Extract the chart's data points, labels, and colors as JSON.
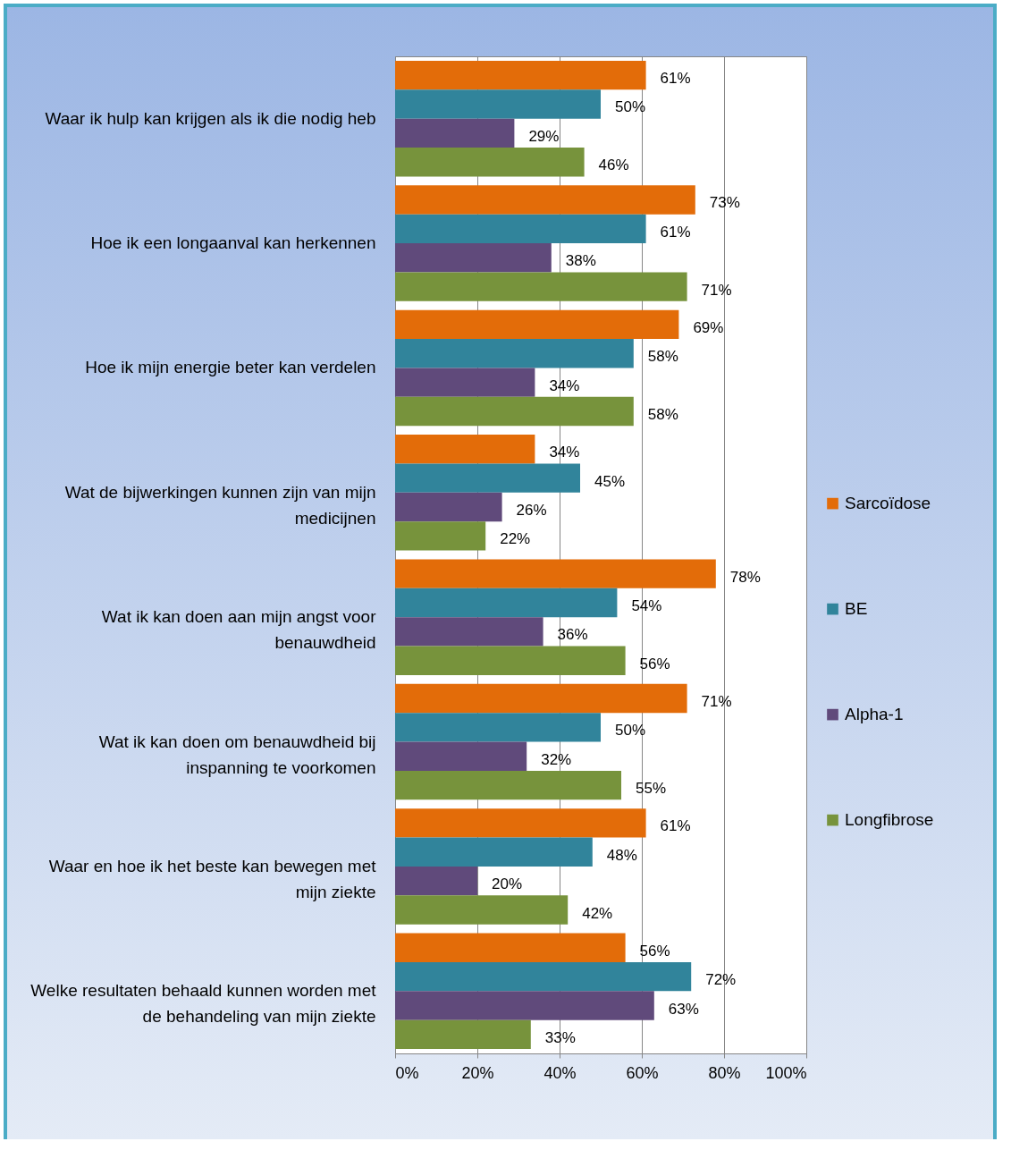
{
  "chart_data": {
    "type": "bar",
    "orientation": "horizontal",
    "categories": [
      "Waar ik hulp kan krijgen als ik die nodig heb",
      "Hoe ik een longaanval kan herkennen",
      "Hoe ik mijn energie beter kan verdelen",
      "Wat de bijwerkingen kunnen zijn van mijn medicijnen",
      "Wat ik kan doen aan mijn angst voor benauwdheid",
      "Wat ik kan doen om benauwdheid bij inspanning te voorkomen",
      "Waar en hoe ik het beste kan bewegen met mijn ziekte",
      "Welke resultaten behaald kunnen worden met de behandeling van mijn ziekte"
    ],
    "series": [
      {
        "name": "Sarcoïdose",
        "color": "#e36c09",
        "values": [
          61,
          73,
          69,
          34,
          78,
          71,
          61,
          56
        ],
        "value_labels": [
          "61%",
          "73%",
          "69%",
          "34%",
          "78%",
          "71%",
          "61%",
          "56%"
        ]
      },
      {
        "name": "BE",
        "color": "#31849b",
        "values": [
          50,
          61,
          58,
          45,
          54,
          50,
          48,
          72
        ],
        "value_labels": [
          "50%",
          "61%",
          "58%",
          "45%",
          "54%",
          "50%",
          "48%",
          "72%"
        ]
      },
      {
        "name": "Alpha-1",
        "color": "#604a7b",
        "values": [
          29,
          38,
          34,
          26,
          36,
          32,
          20,
          63
        ],
        "value_labels": [
          "29%",
          "38%",
          "34%",
          "26%",
          "36%",
          "32%",
          "20%",
          "63%"
        ]
      },
      {
        "name": "Longfibrose",
        "color": "#77933c",
        "values": [
          46,
          71,
          58,
          22,
          56,
          55,
          42,
          33
        ],
        "value_labels": [
          "46%",
          "71%",
          "58%",
          "22%",
          "56%",
          "55%",
          "42%",
          "33%"
        ]
      }
    ],
    "xlim": [
      0,
      100
    ],
    "xticks": [
      {
        "value": 0,
        "label": "0%"
      },
      {
        "value": 20,
        "label": "20%"
      },
      {
        "value": 40,
        "label": "40%"
      },
      {
        "value": 60,
        "label": "60%"
      },
      {
        "value": 80,
        "label": "80%"
      },
      {
        "value": 100,
        "label": "100%"
      }
    ],
    "grid": "x",
    "legend": "right"
  }
}
